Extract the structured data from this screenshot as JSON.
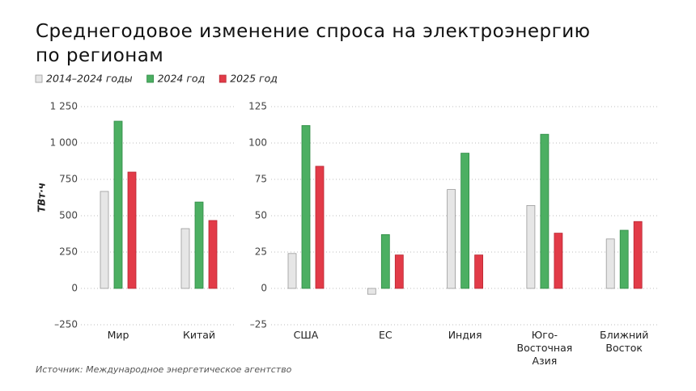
{
  "title": "Среднегодовое изменение спроса на электроэнергию по регионам",
  "source": "Источник: Международное энергетическое агентство",
  "chart_data": [
    {
      "type": "bar",
      "ylabel": "ТВт·ч",
      "categories": [
        "Мир",
        "Китай"
      ],
      "series": [
        {
          "name": "2014–2024 годы",
          "color": "#e6e6e6",
          "values": [
            667,
            411
          ]
        },
        {
          "name": "2024 год",
          "color": "#4caf62",
          "values": [
            1150,
            594
          ]
        },
        {
          "name": "2025 год",
          "color": "#e23b48",
          "values": [
            800,
            467
          ]
        }
      ],
      "ylim": [
        -250,
        1250
      ],
      "yticks": [
        {
          "value": -250,
          "label": "–250"
        },
        0,
        250,
        500,
        750,
        {
          "value": 1000,
          "label": "1 000"
        },
        {
          "value": 1250,
          "label": "1 250"
        }
      ],
      "grid": true
    },
    {
      "type": "bar",
      "categories": [
        "США",
        "ЕС",
        "Индия",
        "Юго-Восточная Азия",
        "Ближний Восток"
      ],
      "series": [
        {
          "color": "#e6e6e6",
          "values": [
            24,
            -4,
            68,
            57,
            34
          ]
        },
        {
          "color": "#4caf62",
          "values": [
            112,
            37,
            93,
            106,
            40
          ]
        },
        {
          "color": "#e23b48",
          "values": [
            84,
            23,
            23,
            38,
            46
          ]
        }
      ],
      "ylim": [
        -25,
        125
      ],
      "yticks": [
        {
          "value": -25,
          "label": "–25"
        },
        0,
        25,
        50,
        75,
        100,
        125
      ],
      "grid": true
    }
  ]
}
